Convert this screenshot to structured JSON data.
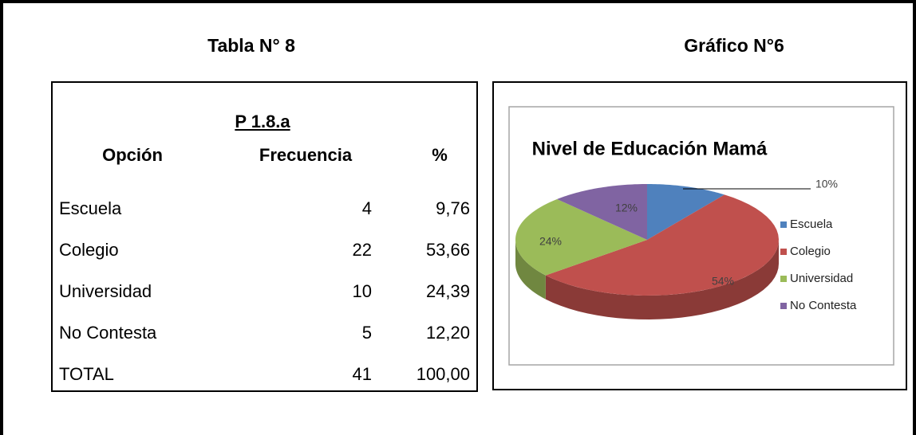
{
  "table_heading": "Tabla N° 8",
  "chart_heading": "Gráfico N°6",
  "table": {
    "caption": "P 1.8.a",
    "headers": [
      "Opción",
      "Frecuencia",
      "%"
    ],
    "rows": [
      [
        "Escuela",
        "4",
        "9,76"
      ],
      [
        "Colegio",
        "22",
        "53,66"
      ],
      [
        "Universidad",
        "10",
        "24,39"
      ],
      [
        "No Contesta",
        "5",
        "12,20"
      ],
      [
        "TOTAL",
        "41",
        "100,00"
      ]
    ]
  },
  "chart_data": {
    "type": "pie",
    "title": "Nivel de Educación Mamá",
    "categories": [
      "Escuela",
      "Colegio",
      "Universidad",
      "No Contesta"
    ],
    "values": [
      10,
      54,
      24,
      12
    ],
    "value_labels": [
      "10%",
      "54%",
      "24%",
      "12%"
    ],
    "colors": [
      "#4f81bd",
      "#c0504d",
      "#9bbb59",
      "#8064a2"
    ],
    "legend": "right"
  }
}
